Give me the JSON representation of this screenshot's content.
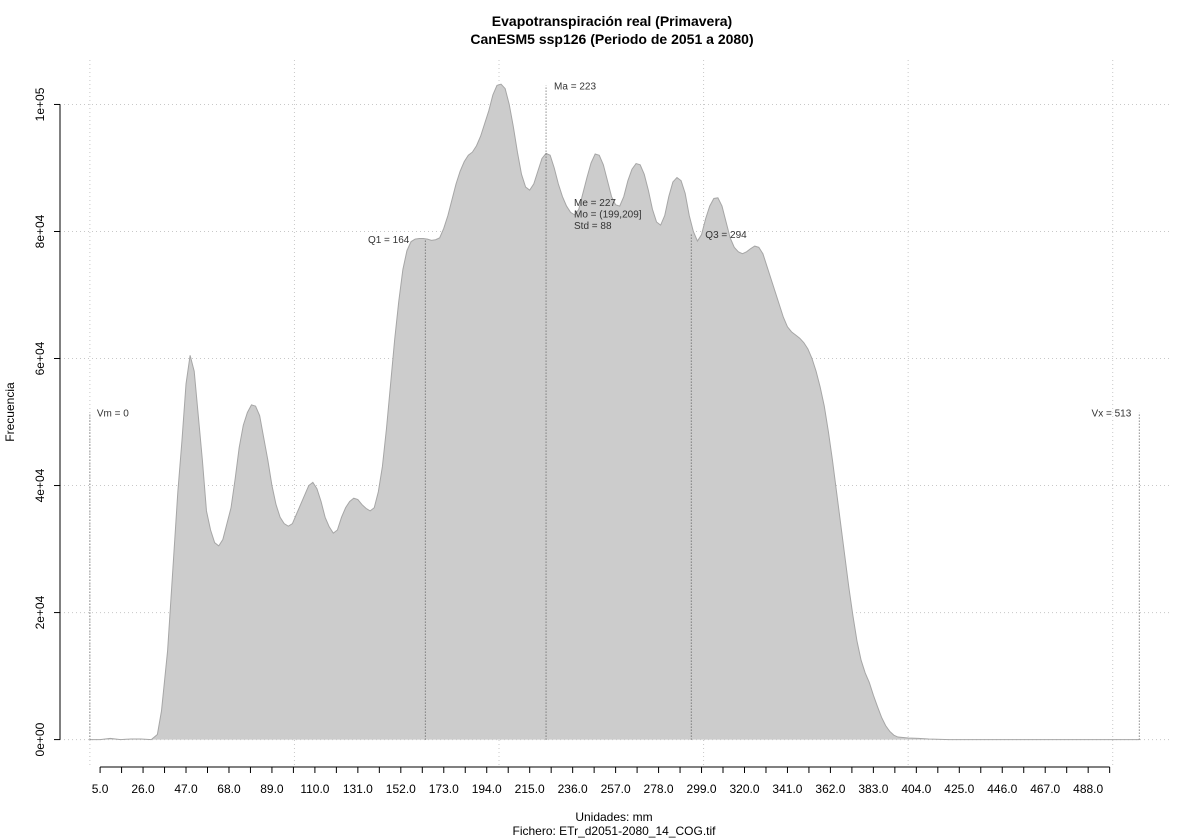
{
  "chart_data": {
    "type": "density",
    "title": "Evapotranspiración real (Primavera)",
    "subtitle": "CanESM5 ssp126 (Periodo de 2051 a 2080)",
    "x_label": "Unidades: mm",
    "caption": "Fichero: ETr_d2051-2080_14_COG.tif",
    "y_label": "Frecuencia",
    "color": "#cccccc",
    "line_color": "#a6a6a6",
    "grid": true,
    "xlim": [
      -14.6,
      528
    ],
    "ylim": [
      -4000,
      107000
    ],
    "xticks": [
      {
        "value": 5,
        "label": "5.0"
      },
      {
        "value": 26,
        "label": "26.0"
      },
      {
        "value": 47,
        "label": "47.0"
      },
      {
        "value": 68,
        "label": "68.0"
      },
      {
        "value": 89,
        "label": "89.0"
      },
      {
        "value": 110,
        "label": "110.0"
      },
      {
        "value": 131,
        "label": "131.0"
      },
      {
        "value": 152,
        "label": "152.0"
      },
      {
        "value": 173,
        "label": "173.0"
      },
      {
        "value": 194,
        "label": "194.0"
      },
      {
        "value": 215,
        "label": "215.0"
      },
      {
        "value": 236,
        "label": "236.0"
      },
      {
        "value": 257,
        "label": "257.0"
      },
      {
        "value": 278,
        "label": "278.0"
      },
      {
        "value": 299,
        "label": "299.0"
      },
      {
        "value": 320,
        "label": "320.0"
      },
      {
        "value": 341,
        "label": "341.0"
      },
      {
        "value": 362,
        "label": "362.0"
      },
      {
        "value": 383,
        "label": "383.0"
      },
      {
        "value": 404,
        "label": "404.0"
      },
      {
        "value": 425,
        "label": "425.0"
      },
      {
        "value": 446,
        "label": "446.0"
      },
      {
        "value": 467,
        "label": "467.0"
      },
      {
        "value": 488,
        "label": "488.0"
      }
    ],
    "xminorticks": [
      15.5,
      36.5,
      57.5,
      78.5,
      99.5,
      120.5,
      141.5,
      162.5,
      183.5,
      204.5,
      225.5,
      246.5,
      267.5,
      288.5,
      309.5,
      330.5,
      351.5,
      372.5,
      393.5,
      414.5,
      435.5,
      456.5,
      477.5,
      498.5
    ],
    "xgrid": [
      0,
      100,
      200,
      300,
      400,
      500
    ],
    "yticks": [
      {
        "value": 0,
        "label": "0e+00"
      },
      {
        "value": 20000,
        "label": "2e+04"
      },
      {
        "value": 40000,
        "label": "4e+04"
      },
      {
        "value": 60000,
        "label": "6e+04"
      },
      {
        "value": 80000,
        "label": "8e+04"
      },
      {
        "value": 100000,
        "label": "1e+05"
      }
    ],
    "x": [
      0,
      5,
      10,
      15,
      20,
      25,
      30,
      33,
      35,
      38,
      40,
      43,
      45,
      47,
      49,
      51,
      53,
      55,
      57,
      59,
      61,
      63,
      65,
      67,
      69,
      71,
      73,
      75,
      77,
      79,
      81,
      83,
      85,
      87,
      89,
      91,
      93,
      95,
      97,
      99,
      101,
      103,
      105,
      107,
      109,
      111,
      113,
      115,
      117,
      119,
      121,
      123,
      125,
      127,
      129,
      131,
      133,
      135,
      137,
      139,
      141,
      143,
      145,
      147,
      149,
      151,
      153,
      155,
      157,
      159,
      161,
      163,
      165,
      167,
      169,
      171,
      173,
      175,
      177,
      179,
      181,
      183,
      185,
      187,
      189,
      191,
      193,
      195,
      197,
      199,
      201,
      203,
      205,
      207,
      209,
      211,
      213,
      215,
      217,
      219,
      221,
      223,
      225,
      227,
      229,
      231,
      233,
      235,
      237,
      239,
      241,
      243,
      245,
      247,
      249,
      251,
      253,
      255,
      257,
      259,
      261,
      263,
      265,
      267,
      269,
      271,
      273,
      275,
      277,
      279,
      281,
      283,
      285,
      287,
      289,
      291,
      293,
      295,
      297,
      299,
      301,
      303,
      305,
      307,
      309,
      311,
      313,
      315,
      317,
      319,
      321,
      323,
      325,
      327,
      329,
      331,
      333,
      335,
      337,
      339,
      341,
      343,
      345,
      347,
      349,
      351,
      353,
      355,
      357,
      359,
      361,
      363,
      365,
      367,
      369,
      371,
      373,
      375,
      377,
      379,
      381,
      383,
      385,
      387,
      389,
      391,
      393,
      395,
      400,
      405,
      410,
      420,
      513
    ],
    "values": [
      0,
      0,
      200,
      0,
      100,
      100,
      0,
      800,
      4500,
      14000,
      24000,
      39000,
      47000,
      56000,
      60500,
      58000,
      51000,
      44000,
      36000,
      33000,
      31000,
      30500,
      31500,
      34000,
      36500,
      41000,
      46000,
      49500,
      51500,
      52700,
      52500,
      51000,
      47500,
      44000,
      40000,
      37000,
      35000,
      34000,
      33600,
      34000,
      35500,
      37000,
      38500,
      40000,
      40500,
      39500,
      37500,
      35000,
      33500,
      32500,
      33000,
      35000,
      36500,
      37500,
      38000,
      37800,
      37000,
      36400,
      36000,
      36500,
      39000,
      43000,
      49000,
      56000,
      63000,
      69000,
      74000,
      77000,
      78400,
      78800,
      78900,
      78900,
      78800,
      78600,
      78700,
      79000,
      80500,
      82500,
      85000,
      87500,
      89500,
      91000,
      92000,
      92500,
      93500,
      95000,
      97000,
      99000,
      101500,
      103000,
      103200,
      102500,
      100000,
      96500,
      92500,
      89000,
      87000,
      86500,
      87500,
      89500,
      91500,
      92300,
      92000,
      90000,
      87500,
      85500,
      84000,
      83000,
      82600,
      83500,
      86000,
      88500,
      90800,
      92200,
      92000,
      90500,
      88000,
      85500,
      84200,
      84000,
      85500,
      88000,
      89800,
      90700,
      90500,
      89000,
      86500,
      83500,
      81500,
      81000,
      82500,
      85500,
      87800,
      88500,
      88000,
      86000,
      82500,
      80000,
      78500,
      79500,
      82000,
      84000,
      85200,
      85300,
      84000,
      81500,
      79000,
      77500,
      76800,
      76500,
      76800,
      77300,
      77700,
      77500,
      76500,
      74500,
      72500,
      70500,
      68500,
      66500,
      65000,
      64200,
      63700,
      63200,
      62500,
      61500,
      60000,
      58000,
      55500,
      52500,
      48500,
      44000,
      39000,
      34000,
      29000,
      24000,
      19500,
      15500,
      12500,
      10500,
      9000,
      7000,
      5200,
      3500,
      2200,
      1300,
      700,
      400,
      250,
      200,
      100,
      0,
      0
    ],
    "markers": [
      {
        "label": "Vm = 0",
        "value": 0,
        "top": 51500
      },
      {
        "label": "Q1 = 164",
        "value": 164,
        "top": 78800
      },
      {
        "label": "Ma = 223",
        "value": 223,
        "top": 103000
      },
      {
        "label": "Q3 = 294",
        "value": 294,
        "top": 79600
      },
      {
        "label": "Vx = 513",
        "value": 513,
        "top": 51500
      }
    ],
    "stats": [
      "Me = 227",
      "Mo = (199,209]",
      "Std = 88"
    ]
  }
}
